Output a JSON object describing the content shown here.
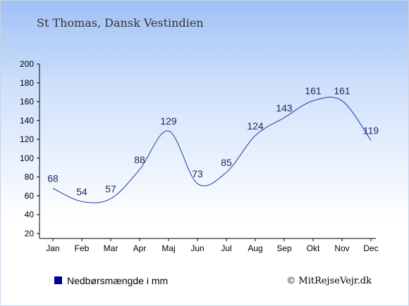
{
  "title": "St Thomas, Dansk Vestindien",
  "legend": {
    "label": "Nedbørsmængde i mm",
    "swatch_color": "#00009c"
  },
  "credit": "© MitRejseVejr.dk",
  "colors": {
    "line": "#1f3aa0",
    "axis": "#000000",
    "label": "#1a2a5a"
  },
  "chart_data": {
    "type": "line",
    "title": "St Thomas, Dansk Vestindien",
    "xlabel": "",
    "ylabel": "",
    "categories": [
      "Jan",
      "Feb",
      "Mar",
      "Apr",
      "Maj",
      "Jun",
      "Jul",
      "Aug",
      "Sep",
      "Okt",
      "Nov",
      "Dec"
    ],
    "series": [
      {
        "name": "Nedbørsmængde i mm",
        "values": [
          68,
          54,
          57,
          88,
          129,
          73,
          85,
          124,
          143,
          161,
          161,
          119
        ]
      }
    ],
    "ylim": [
      20,
      200
    ],
    "yticks": [
      20,
      40,
      60,
      80,
      100,
      120,
      140,
      160,
      180,
      200
    ],
    "grid": false,
    "legend_position": "bottom-left",
    "data_labels": true
  }
}
